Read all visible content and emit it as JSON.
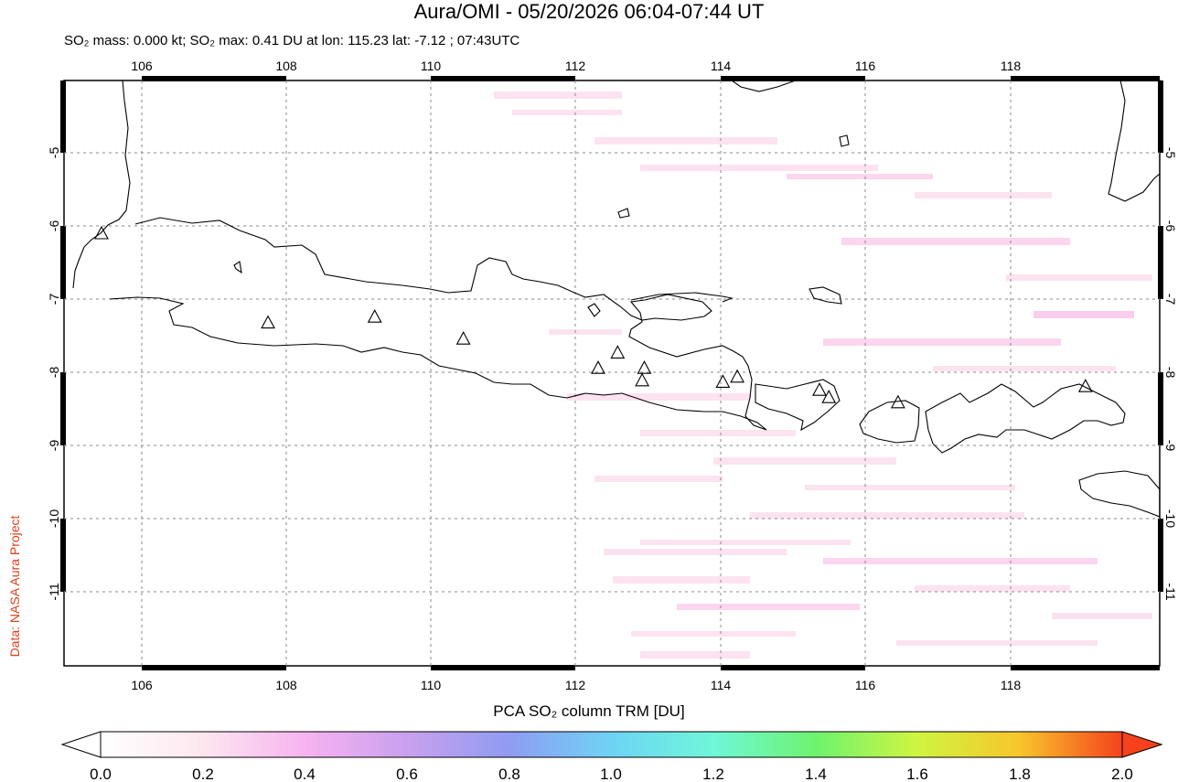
{
  "header": {
    "title": "Aura/OMI - 05/20/2026 06:04-07:44 UT",
    "subtitle": "SO₂ mass: 0.000 kt; SO₂ max: 0.41 DU at lon: 115.23 lat: -7.12 ; 07:43UTC"
  },
  "credit": "Data: NASA Aura Project",
  "map": {
    "lon_range": [
      104.9,
      120.1
    ],
    "lat_range": [
      -12.0,
      -4.0
    ],
    "lon_ticks": [
      "106",
      "108",
      "110",
      "112",
      "114",
      "116",
      "118"
    ],
    "lat_ticks": [
      "-5",
      "-6",
      "-7",
      "-8",
      "-9",
      "-10",
      "-11"
    ],
    "grid": "dotted",
    "volcanoes": [
      {
        "lon": 105.42,
        "lat": -6.1
      },
      {
        "lon": 107.73,
        "lat": -7.32
      },
      {
        "lon": 109.21,
        "lat": -7.24
      },
      {
        "lon": 110.44,
        "lat": -7.54
      },
      {
        "lon": 112.31,
        "lat": -7.94
      },
      {
        "lon": 112.58,
        "lat": -7.73
      },
      {
        "lon": 112.95,
        "lat": -7.94
      },
      {
        "lon": 112.92,
        "lat": -8.11
      },
      {
        "lon": 114.04,
        "lat": -8.13
      },
      {
        "lon": 114.24,
        "lat": -8.06
      },
      {
        "lon": 115.38,
        "lat": -8.24
      },
      {
        "lon": 115.51,
        "lat": -8.34
      },
      {
        "lon": 116.47,
        "lat": -8.41
      },
      {
        "lon": 119.07,
        "lat": -8.19
      }
    ]
  },
  "colorbar": {
    "title": "PCA SO₂ column TRM [DU]",
    "ticks": [
      "0.0",
      "0.2",
      "0.4",
      "0.6",
      "0.8",
      "1.0",
      "1.2",
      "1.4",
      "1.6",
      "1.8",
      "2.0"
    ],
    "colors": [
      "#ffffff",
      "#fde7ef",
      "#f7b3f0",
      "#c9a0ee",
      "#8f9cf2",
      "#6ed3f5",
      "#6ff7d9",
      "#6ef36e",
      "#cff540",
      "#f8c52b",
      "#f5421c"
    ]
  }
}
